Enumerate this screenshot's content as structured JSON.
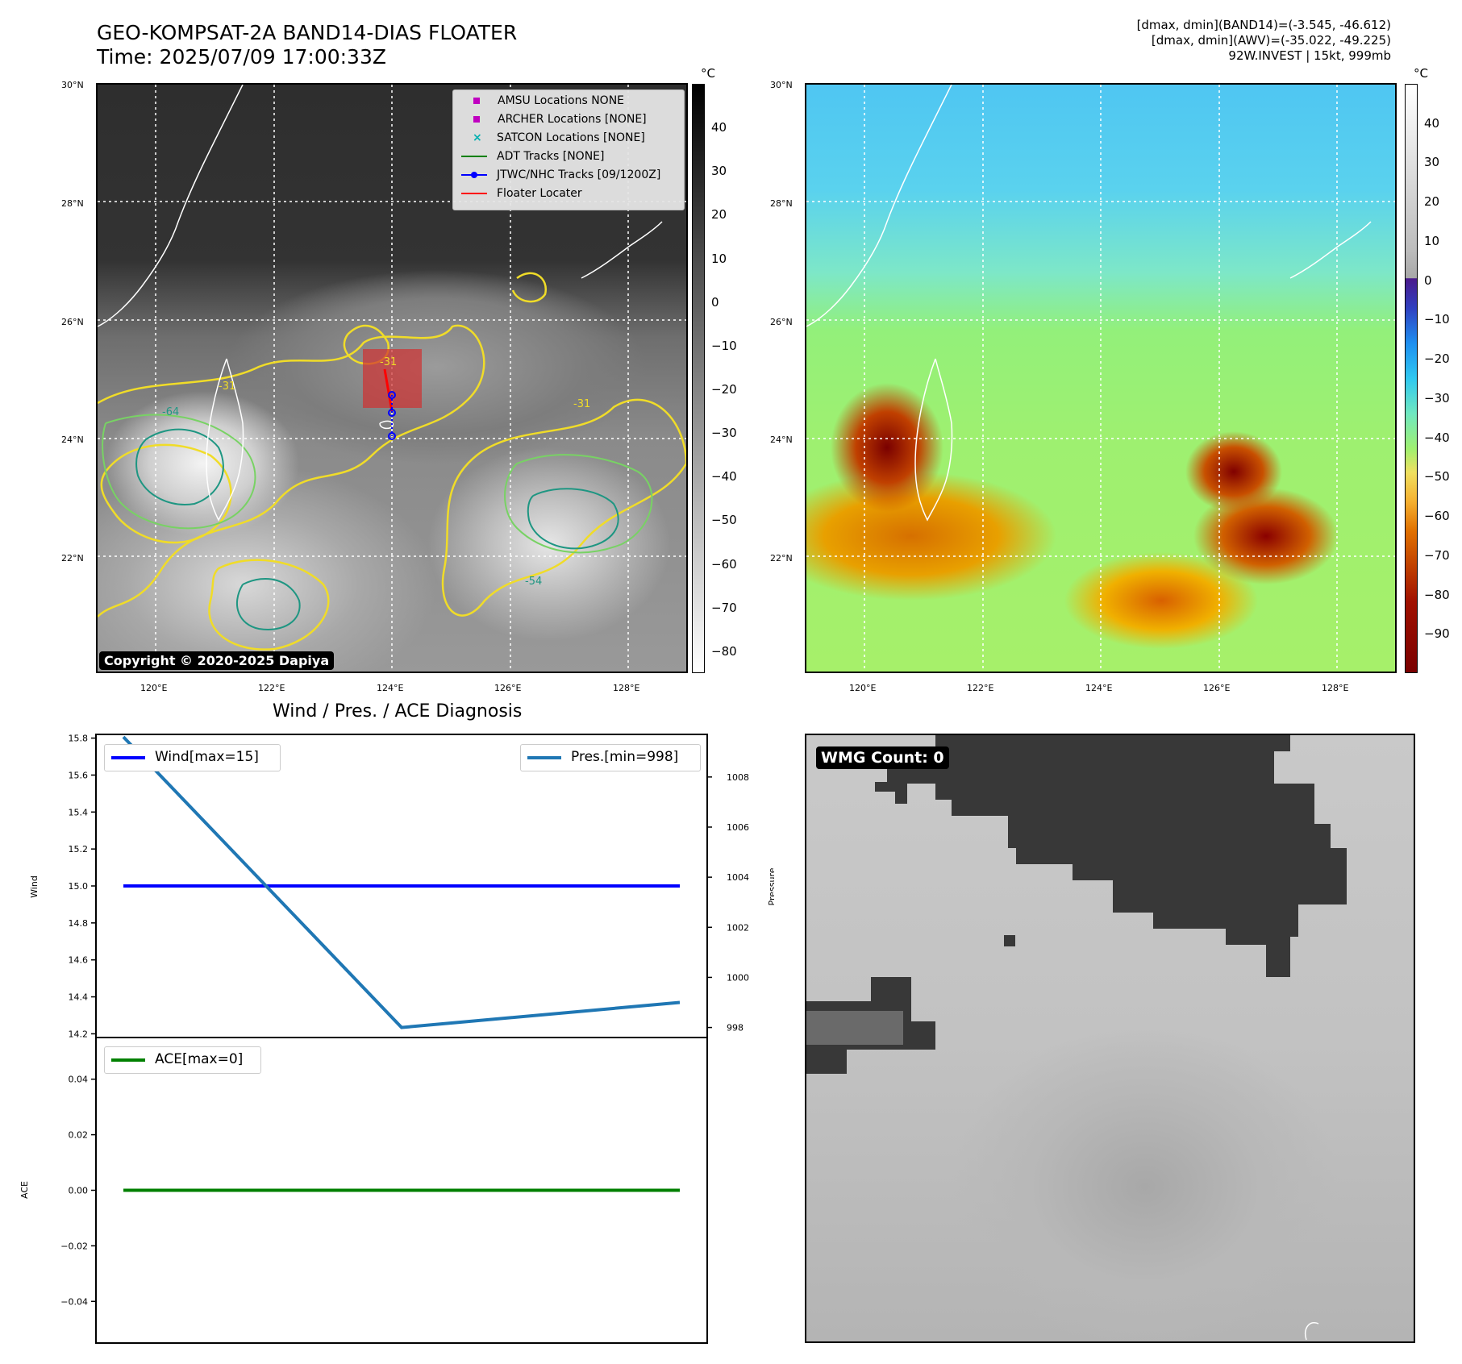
{
  "header": {
    "title_line1": "GEO-KOMPSAT-2A BAND14-DIAS FLOATER",
    "title_line2": "Time: 2025/07/09 17:00:33Z",
    "info_line1": "[dmax, dmin](BAND14)=(-3.545, -46.612)",
    "info_line2": "[dmax, dmin](AWV)=(-35.022, -49.225)",
    "info_line3": "92W.INVEST | 15kt, 999mb"
  },
  "maps": {
    "lat_labels": [
      "30°N",
      "28°N",
      "26°N",
      "24°N",
      "22°N"
    ],
    "lon_labels": [
      "120°E",
      "122°E",
      "124°E",
      "126°E",
      "128°E"
    ],
    "copyright": "Copyright © 2020-2025 Dapiya",
    "ir_colorbar": {
      "unit": "°C",
      "ticks": [
        "40",
        "30",
        "20",
        "10",
        "0",
        "−10",
        "−20",
        "−30",
        "−40",
        "−50",
        "−60",
        "−70",
        "−80"
      ],
      "colormap": "gray"
    },
    "awv_colorbar": {
      "unit": "°C",
      "ticks": [
        "40",
        "30",
        "20",
        "10",
        "0",
        "−10",
        "−20",
        "−30",
        "−40",
        "−50",
        "−60",
        "−70",
        "−80",
        "−90"
      ],
      "colormap": "white-above-0, rainbow below 0"
    },
    "contour_labels": [
      "-31",
      "-54",
      "-64"
    ],
    "legend": [
      {
        "label": "AMSU Locations NONE",
        "marker": "square",
        "color": "#c000c0"
      },
      {
        "label": "ARCHER Locations [NONE]",
        "marker": "square",
        "color": "#c000c0"
      },
      {
        "label": "SATCON Locations [NONE]",
        "marker": "x",
        "color": "#00b0b0"
      },
      {
        "label": "ADT Tracks [NONE]",
        "marker": "line",
        "color": "#008000"
      },
      {
        "label": "JTWC/NHC Tracks [09/1200Z]",
        "marker": "line-dot",
        "color": "#0000ff"
      },
      {
        "label": "Floater Locater",
        "marker": "line",
        "color": "#ff0000"
      }
    ]
  },
  "diagnosis": {
    "title": "Wind / Pres. / ACE Diagnosis",
    "wind_axis_label": "Wind",
    "pressure_axis_label": "Pressure",
    "ace_axis_label": "ACE",
    "wind_ticks": [
      "15.8",
      "15.6",
      "15.4",
      "15.2",
      "15.0",
      "14.8",
      "14.6",
      "14.4",
      "14.2"
    ],
    "pressure_ticks": [
      "1008",
      "1006",
      "1004",
      "1002",
      "1000",
      "998"
    ],
    "ace_ticks": [
      "0.04",
      "0.02",
      "0.00",
      "−0.02",
      "−0.04"
    ],
    "wind_legend": "Wind[max=15]",
    "pressure_legend": "Pres.[min=998]",
    "ace_legend": "ACE[max=0]"
  },
  "wmg": {
    "badge": "WMG Count: 0"
  },
  "chart_data": [
    {
      "type": "line",
      "title": "Wind / Pres. / ACE Diagnosis",
      "x": [
        0,
        1,
        2
      ],
      "series": [
        {
          "name": "Wind[max=15]",
          "axis": "left",
          "values": [
            15,
            15,
            15
          ],
          "color": "#0000ff"
        },
        {
          "name": "Pres.[min=998]",
          "axis": "right",
          "values": [
            1009.6,
            998,
            999
          ]
        }
      ],
      "ylabel": "Wind",
      "ylim": [
        14.18,
        15.82
      ],
      "y2label": "Pressure",
      "y2lim": [
        997.6,
        1009.7
      ],
      "grid": false
    },
    {
      "type": "line",
      "x": [
        0,
        2
      ],
      "series": [
        {
          "name": "ACE[max=0]",
          "values": [
            0,
            0
          ],
          "color": "#008000"
        }
      ],
      "ylabel": "ACE",
      "ylim": [
        -0.055,
        0.055
      ],
      "grid": false
    }
  ]
}
